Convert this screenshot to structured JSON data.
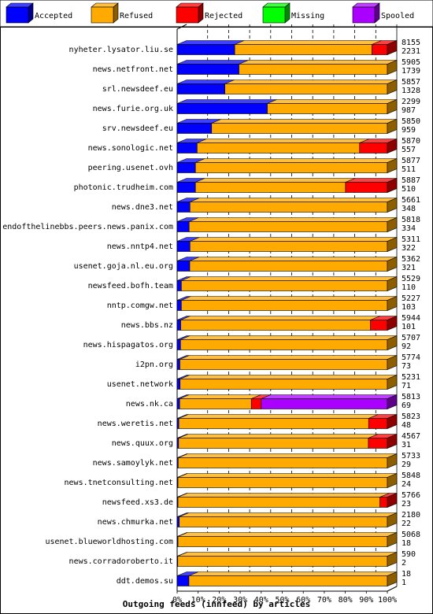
{
  "chart_data": {
    "type": "bar",
    "stacked": true,
    "orientation": "horizontal",
    "title": "Outgoing feeds (innfeed) by articles",
    "x_unit": "percent",
    "xlim": [
      0,
      100
    ],
    "x_ticks": [
      "0%",
      "10%",
      "20%",
      "30%",
      "40%",
      "50%",
      "60%",
      "70%",
      "80%",
      "90%",
      "100%"
    ],
    "legend_position": "top",
    "series": [
      {
        "name": "Accepted",
        "color": "#0000ff"
      },
      {
        "name": "Refused",
        "color": "#ffaa00"
      },
      {
        "name": "Rejected",
        "color": "#ff0000"
      },
      {
        "name": "Missing",
        "color": "#00ff00"
      },
      {
        "name": "Spooled",
        "color": "#aa00ff"
      }
    ],
    "categories": [
      {
        "name": "nyheter.lysator.liu.se",
        "offered": "8155",
        "accepted": "2231",
        "segments": [
          27.4,
          65.3,
          7.3,
          0,
          0
        ]
      },
      {
        "name": "news.netfront.net",
        "offered": "5905",
        "accepted": "1739",
        "segments": [
          29.4,
          70.6,
          0,
          0,
          0
        ]
      },
      {
        "name": "srl.newsdeef.eu",
        "offered": "5857",
        "accepted": "1328",
        "segments": [
          22.7,
          77.3,
          0,
          0,
          0
        ]
      },
      {
        "name": "news.furie.org.uk",
        "offered": "2299",
        "accepted": "987",
        "segments": [
          42.9,
          57.1,
          0,
          0,
          0
        ]
      },
      {
        "name": "srv.newsdeef.eu",
        "offered": "5850",
        "accepted": "959",
        "segments": [
          16.4,
          83.6,
          0,
          0,
          0
        ]
      },
      {
        "name": "news.sonologic.net",
        "offered": "5870",
        "accepted": "557",
        "segments": [
          9.5,
          77.3,
          13.2,
          0,
          0
        ]
      },
      {
        "name": "peering.usenet.ovh",
        "offered": "5877",
        "accepted": "511",
        "segments": [
          8.7,
          91.3,
          0,
          0,
          0
        ]
      },
      {
        "name": "photonic.trudheim.com",
        "offered": "5887",
        "accepted": "510",
        "segments": [
          8.7,
          71.4,
          19.9,
          0,
          0
        ]
      },
      {
        "name": "news.dne3.net",
        "offered": "5661",
        "accepted": "348",
        "segments": [
          6.1,
          93.9,
          0,
          0,
          0
        ]
      },
      {
        "name": "endofthelinebbs.peers.news.panix.com",
        "offered": "5818",
        "accepted": "334",
        "segments": [
          5.7,
          94.3,
          0,
          0,
          0
        ]
      },
      {
        "name": "news.nntp4.net",
        "offered": "5311",
        "accepted": "322",
        "segments": [
          6.1,
          93.9,
          0,
          0,
          0
        ]
      },
      {
        "name": "usenet.goja.nl.eu.org",
        "offered": "5362",
        "accepted": "321",
        "segments": [
          6.0,
          94.0,
          0,
          0,
          0
        ]
      },
      {
        "name": "newsfeed.bofh.team",
        "offered": "5529",
        "accepted": "110",
        "segments": [
          2.0,
          98.0,
          0,
          0,
          0
        ]
      },
      {
        "name": "nntp.comgw.net",
        "offered": "5227",
        "accepted": "103",
        "segments": [
          2.0,
          98.0,
          0,
          0,
          0
        ]
      },
      {
        "name": "news.bbs.nz",
        "offered": "5944",
        "accepted": "101",
        "segments": [
          1.7,
          90.3,
          8.0,
          0,
          0
        ]
      },
      {
        "name": "news.hispagatos.org",
        "offered": "5707",
        "accepted": "92",
        "segments": [
          1.6,
          98.4,
          0,
          0,
          0
        ]
      },
      {
        "name": "i2pn.org",
        "offered": "5774",
        "accepted": "73",
        "segments": [
          1.3,
          98.7,
          0,
          0,
          0
        ]
      },
      {
        "name": "usenet.network",
        "offered": "5231",
        "accepted": "71",
        "segments": [
          1.4,
          98.6,
          0,
          0,
          0
        ]
      },
      {
        "name": "news.nk.ca",
        "offered": "5813",
        "accepted": "69",
        "segments": [
          1.2,
          34.1,
          4.7,
          0,
          60.0
        ]
      },
      {
        "name": "news.weretis.net",
        "offered": "5823",
        "accepted": "48",
        "segments": [
          0.8,
          90.3,
          8.9,
          0,
          0
        ]
      },
      {
        "name": "news.quux.org",
        "offered": "4567",
        "accepted": "31",
        "segments": [
          0.7,
          90.3,
          9.0,
          0,
          0
        ]
      },
      {
        "name": "news.samoylyk.net",
        "offered": "5733",
        "accepted": "29",
        "segments": [
          0.5,
          99.5,
          0,
          0,
          0
        ]
      },
      {
        "name": "news.tnetconsulting.net",
        "offered": "5848",
        "accepted": "24",
        "segments": [
          0.4,
          99.6,
          0,
          0,
          0
        ]
      },
      {
        "name": "newsfeed.xs3.de",
        "offered": "5766",
        "accepted": "23",
        "segments": [
          0.4,
          96.1,
          3.5,
          0,
          0
        ]
      },
      {
        "name": "news.chmurka.net",
        "offered": "2180",
        "accepted": "22",
        "segments": [
          1.0,
          99.0,
          0,
          0,
          0
        ]
      },
      {
        "name": "usenet.blueworldhosting.com",
        "offered": "5068",
        "accepted": "18",
        "segments": [
          0.4,
          99.6,
          0,
          0,
          0
        ]
      },
      {
        "name": "news.corradoroberto.it",
        "offered": "590",
        "accepted": "2",
        "segments": [
          0.3,
          99.7,
          0,
          0,
          0
        ]
      },
      {
        "name": "ddt.demos.su",
        "offered": "18",
        "accepted": "1",
        "segments": [
          5.6,
          94.4,
          0,
          0,
          0
        ]
      }
    ]
  }
}
